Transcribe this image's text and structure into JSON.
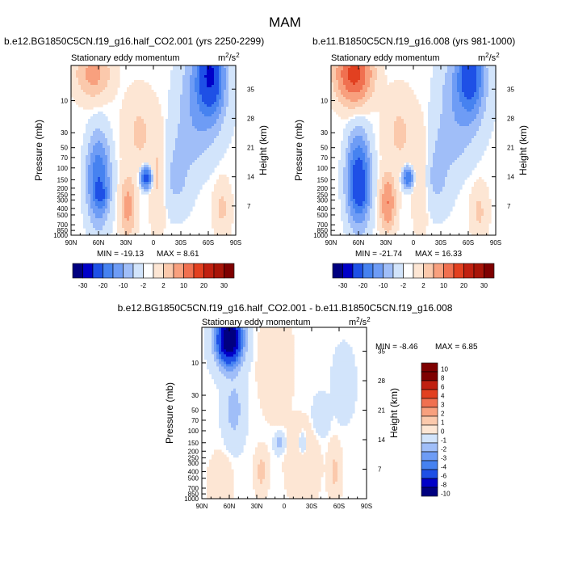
{
  "page_title": "MAM",
  "colors": {
    "neg": [
      "#000080",
      "#0000c8",
      "#1e50e6",
      "#4682f0",
      "#6e9cf5",
      "#a0bef8",
      "#d2e4fb"
    ],
    "pos": [
      "#fde6d4",
      "#fbc9ac",
      "#f8a07e",
      "#f07050",
      "#e24020",
      "#c02010",
      "#7e0000"
    ],
    "zero": "#ffffff"
  },
  "chart_data": [
    {
      "type": "contour",
      "id": "top-left",
      "title": "b.e12.BG1850C5CN.f19_g16.half_CO2.001 (yrs 2250-2299)",
      "subtitle": "Stationary eddy momentum",
      "units_base": "m",
      "units_exp1": "2",
      "units_mid": "/s",
      "units_exp2": "2",
      "ylabel": "Pressure (mb)",
      "ylabel_right": "Height (km)",
      "xticks": [
        "90N",
        "60N",
        "30N",
        "0",
        "30S",
        "60S",
        "90S"
      ],
      "pressure_ticks": [
        "10",
        "30",
        "50",
        "70",
        "100",
        "150",
        "200",
        "250",
        "300",
        "400",
        "500",
        "700",
        "850",
        "1000"
      ],
      "pressure_values": [
        10,
        30,
        50,
        70,
        100,
        150,
        200,
        250,
        300,
        400,
        500,
        700,
        850,
        1000
      ],
      "height_ticks": [
        "35",
        "28",
        "21",
        "14",
        "7"
      ],
      "height_values": [
        35,
        28,
        21,
        14,
        7
      ],
      "min_label": "MIN = -19.13",
      "max_label": "MAX =  8.61",
      "features": [
        {
          "lat": 66,
          "p": 4,
          "amp": 4,
          "wlat": 16,
          "wlp": 0.7
        },
        {
          "lat": -62,
          "p": 4,
          "amp": -20,
          "wlat": 11,
          "wlp": 1.0
        },
        {
          "lat": -55,
          "p": 8,
          "amp": -5,
          "wlat": 20,
          "wlp": 1.3
        },
        {
          "lat": 60,
          "p": 150,
          "amp": -10,
          "wlat": 10,
          "wlp": 1.2
        },
        {
          "lat": 57,
          "p": 260,
          "amp": -6,
          "wlat": 6,
          "wlp": 0.35
        },
        {
          "lat": 28,
          "p": 380,
          "amp": 4,
          "wlat": 7,
          "wlp": 0.9
        },
        {
          "lat": 8,
          "p": 140,
          "amp": -14,
          "wlat": 5,
          "wlp": 0.3
        },
        {
          "lat": -5,
          "p": 140,
          "amp": 1.5,
          "wlat": 8,
          "wlp": 1.5
        },
        {
          "lat": -25,
          "p": 150,
          "amp": -1.5,
          "wlat": 15,
          "wlp": 1.0
        },
        {
          "lat": -40,
          "p": 40,
          "amp": -1.5,
          "wlat": 20,
          "wlp": 1.0
        },
        {
          "lat": 15,
          "p": 30,
          "amp": 1.5,
          "wlat": 15,
          "wlp": 1.2
        },
        {
          "lat": -75,
          "p": 400,
          "amp": 1.5,
          "wlat": 8,
          "wlp": 0.8
        }
      ],
      "colorbar_labels": [
        "-30",
        "-20",
        "-10",
        "-2",
        "2",
        "10",
        "20",
        "30"
      ]
    },
    {
      "type": "contour",
      "id": "top-right",
      "title": "b.e11.B1850C5CN.f19_g16.008 (yrs 981-1000)",
      "subtitle": "Stationary eddy momentum",
      "units_base": "m",
      "units_exp1": "2",
      "units_mid": "/s",
      "units_exp2": "2",
      "ylabel": "Pressure (mb)",
      "ylabel_right": "Height (km)",
      "xticks": [
        "90N",
        "60N",
        "30N",
        "0",
        "30S",
        "60S",
        "90S"
      ],
      "pressure_ticks": [
        "10",
        "30",
        "50",
        "70",
        "100",
        "150",
        "200",
        "250",
        "300",
        "400",
        "500",
        "700",
        "850",
        "1000"
      ],
      "pressure_values": [
        10,
        30,
        50,
        70,
        100,
        150,
        200,
        250,
        300,
        400,
        500,
        700,
        850,
        1000
      ],
      "height_ticks": [
        "35",
        "28",
        "21",
        "14",
        "7"
      ],
      "height_values": [
        35,
        28,
        21,
        14,
        7
      ],
      "min_label": "MIN = -21.74",
      "max_label": "MAX = 16.33",
      "features": [
        {
          "lat": 65,
          "p": 4,
          "amp": 12,
          "wlat": 16,
          "wlp": 0.8
        },
        {
          "lat": -62,
          "p": 4,
          "amp": -14,
          "wlat": 11,
          "wlp": 1.0
        },
        {
          "lat": -55,
          "p": 8,
          "amp": -4,
          "wlat": 20,
          "wlp": 1.3
        },
        {
          "lat": 60,
          "p": 150,
          "amp": -15,
          "wlat": 10,
          "wlp": 1.2
        },
        {
          "lat": 57,
          "p": 250,
          "amp": -6,
          "wlat": 6,
          "wlp": 0.35
        },
        {
          "lat": 28,
          "p": 330,
          "amp": 6,
          "wlat": 7,
          "wlp": 0.8
        },
        {
          "lat": 6,
          "p": 140,
          "amp": -10,
          "wlat": 5,
          "wlp": 0.3
        },
        {
          "lat": -8,
          "p": 140,
          "amp": 1.5,
          "wlat": 8,
          "wlp": 1.5
        },
        {
          "lat": -25,
          "p": 150,
          "amp": -1.5,
          "wlat": 15,
          "wlp": 1.0
        },
        {
          "lat": -40,
          "p": 40,
          "amp": -1.5,
          "wlat": 20,
          "wlp": 1.0
        },
        {
          "lat": 15,
          "p": 30,
          "amp": 1.5,
          "wlat": 15,
          "wlp": 1.2
        },
        {
          "lat": -72,
          "p": 450,
          "amp": 1.5,
          "wlat": 8,
          "wlp": 0.8
        }
      ],
      "colorbar_labels": [
        "-30",
        "-20",
        "-10",
        "-2",
        "2",
        "10",
        "20",
        "30"
      ]
    },
    {
      "type": "contour",
      "id": "bottom",
      "title": "b.e12.BG1850C5CN.f19_g16.half_CO2.001 - b.e11.B1850C5CN.f19_g16.008",
      "subtitle": "Stationary eddy momentum",
      "units_base": "m",
      "units_exp1": "2",
      "units_mid": "/s",
      "units_exp2": "2",
      "ylabel": "Pressure (mb)",
      "ylabel_right": "Height (km)",
      "xticks": [
        "90N",
        "60N",
        "30N",
        "0",
        "30S",
        "60S",
        "90S"
      ],
      "pressure_ticks": [
        "10",
        "30",
        "50",
        "70",
        "100",
        "150",
        "200",
        "250",
        "300",
        "400",
        "500",
        "700",
        "850",
        "1000"
      ],
      "pressure_values": [
        10,
        30,
        50,
        70,
        100,
        150,
        200,
        250,
        300,
        400,
        500,
        700,
        850,
        1000
      ],
      "height_ticks": [
        "35",
        "28",
        "21",
        "14",
        "7"
      ],
      "height_values": [
        35,
        28,
        21,
        14,
        7
      ],
      "min_label": "MIN =  -8.46",
      "max_label": "MAX =   6.85",
      "features": [
        {
          "lat": 60,
          "p": 4.5,
          "amp": -11,
          "wlat": 13,
          "wlp": 0.8
        },
        {
          "lat": 55,
          "p": 50,
          "amp": -1.5,
          "wlat": 10,
          "wlp": 1.0
        },
        {
          "lat": 10,
          "p": 10,
          "amp": 0.8,
          "wlat": 15,
          "wlp": 1.5
        },
        {
          "lat": -20,
          "p": 300,
          "amp": 0.8,
          "wlat": 15,
          "wlp": 1.2
        },
        {
          "lat": 25,
          "p": 400,
          "amp": 1.5,
          "wlat": 6,
          "wlp": 0.6
        },
        {
          "lat": 5,
          "p": 150,
          "amp": -1.5,
          "wlat": 5,
          "wlp": 0.3
        },
        {
          "lat": -20,
          "p": 160,
          "amp": -1.3,
          "wlat": 4,
          "wlp": 0.4
        },
        {
          "lat": -65,
          "p": 20,
          "amp": -0.8,
          "wlat": 10,
          "wlp": 1.0
        },
        {
          "lat": -55,
          "p": 400,
          "amp": 1.3,
          "wlat": 6,
          "wlp": 0.8
        },
        {
          "lat": 70,
          "p": 600,
          "amp": 1.0,
          "wlat": 10,
          "wlp": 0.8
        },
        {
          "lat": -40,
          "p": 60,
          "amp": -0.8,
          "wlat": 8,
          "wlp": 0.6
        }
      ],
      "colorbar_labels": [
        "10",
        "8",
        "6",
        "4",
        "3",
        "2",
        "1",
        "0",
        "-1",
        "-2",
        "-3",
        "-4",
        "-6",
        "-8",
        "-10"
      ]
    }
  ]
}
